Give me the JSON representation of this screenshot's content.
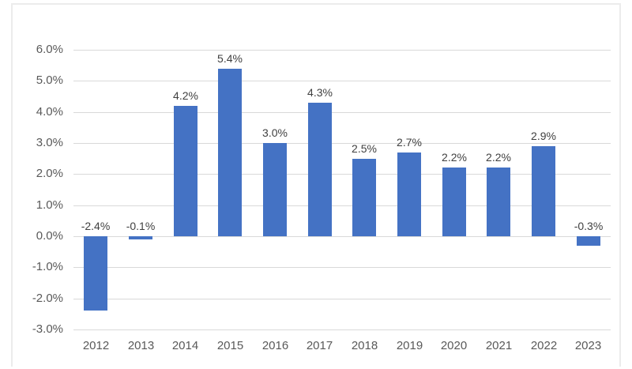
{
  "chart_data": {
    "type": "bar",
    "title": "",
    "xlabel": "",
    "ylabel": "",
    "categories": [
      "2012",
      "2013",
      "2014",
      "2015",
      "2016",
      "2017",
      "2018",
      "2019",
      "2020",
      "2021",
      "2022",
      "2023"
    ],
    "values": [
      -2.4,
      -0.1,
      4.2,
      5.4,
      3.0,
      4.3,
      2.5,
      2.7,
      2.2,
      2.2,
      2.9,
      -0.3
    ],
    "data_labels": [
      "-2.4%",
      "-0.1%",
      "4.2%",
      "5.4%",
      "3.0%",
      "4.3%",
      "2.5%",
      "2.7%",
      "2.2%",
      "2.2%",
      "2.9%",
      "-0.3%"
    ],
    "ytick_values": [
      6.0,
      5.0,
      4.0,
      3.0,
      2.0,
      1.0,
      0.0,
      -1.0,
      -2.0,
      -3.0
    ],
    "ytick_labels": [
      "6.0%",
      "5.0%",
      "4.0%",
      "3.0%",
      "2.0%",
      "1.0%",
      "0.0%",
      "-1.0%",
      "-2.0%",
      "-3.0%"
    ],
    "ylim": [
      -3.0,
      6.0
    ],
    "grid": true,
    "legend": false,
    "colors": {
      "bar": "#4472c4",
      "gridline": "#d9d9d9",
      "tick_text": "#595959",
      "data_label_text": "#404040",
      "frame_border": "#ececec",
      "background": "#ffffff"
    }
  }
}
